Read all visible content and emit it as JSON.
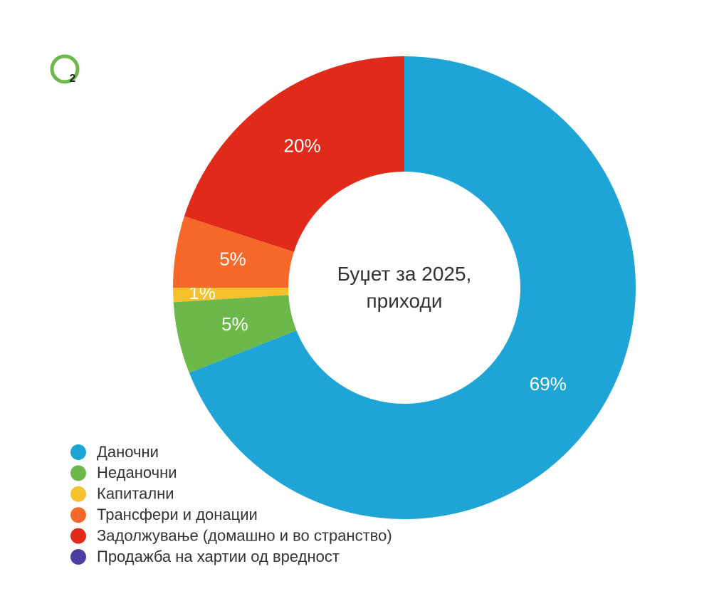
{
  "chart_data": {
    "type": "donut",
    "title": "Буџет за 2025, приходи",
    "logo": "2",
    "categories": [
      "Даночни",
      "Неданочни",
      "Капитални",
      "Трансфери и донации",
      "Задолжување (домашно и во странство)",
      "Продажба на хартии од вредност"
    ],
    "values": [
      69,
      5,
      1,
      5,
      20,
      0
    ],
    "value_labels": [
      "69%",
      "5%",
      "1%",
      "5%",
      "20%",
      null
    ],
    "colors": [
      "#1ea5d6",
      "#6db84a",
      "#f5c12e",
      "#f7692a",
      "#e02b1a",
      "#4a3fa0"
    ],
    "legend": "bottom-left"
  }
}
